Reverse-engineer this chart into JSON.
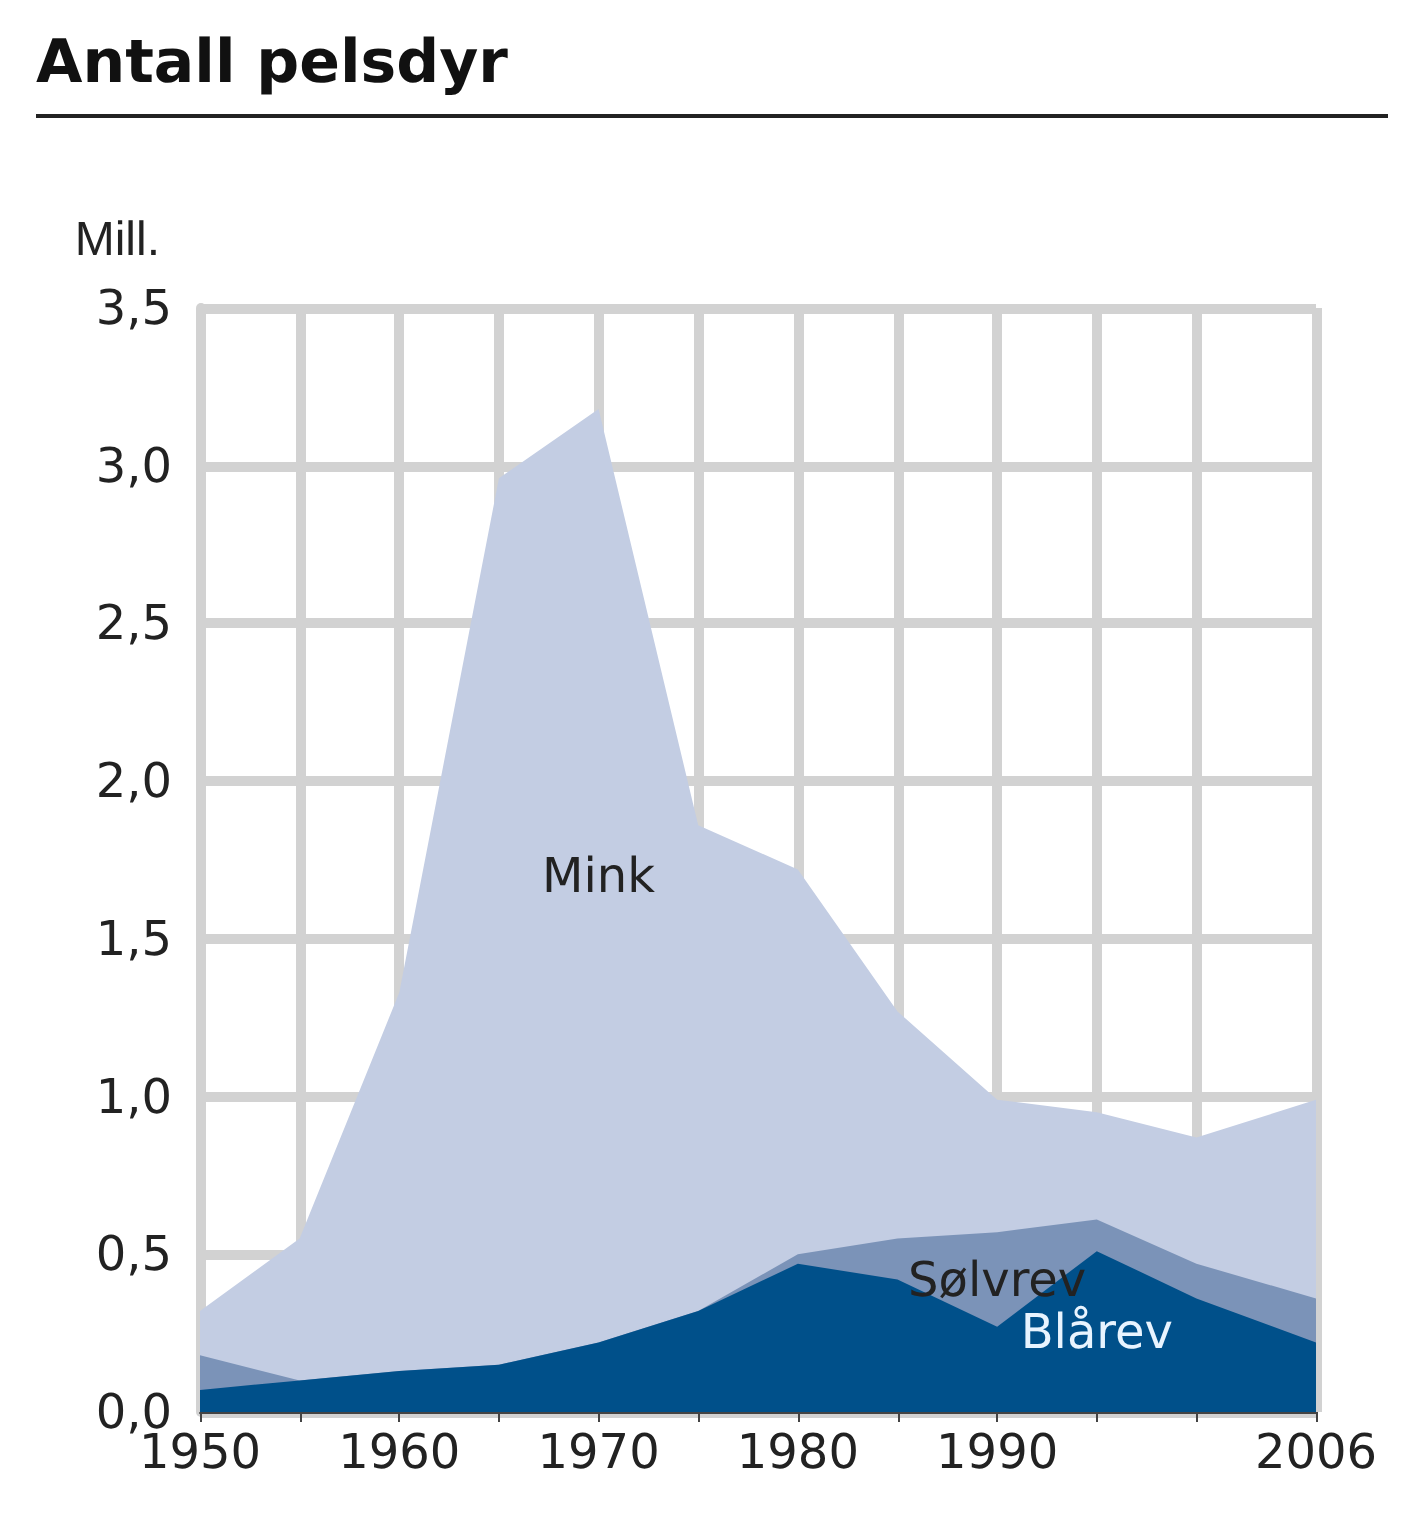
{
  "chart_data": {
    "type": "area",
    "title": "Antall pelsdyr",
    "ylabel": "Mill.",
    "stacked": true,
    "x": [
      1950,
      1955,
      1960,
      1965,
      1970,
      1975,
      1980,
      1985,
      1990,
      1995,
      2000,
      2006
    ],
    "series": [
      {
        "name": "Blårev",
        "color": "#00508a",
        "values": [
          0.07,
          0.1,
          0.13,
          0.15,
          0.22,
          0.32,
          0.47,
          0.42,
          0.27,
          0.51,
          0.36,
          0.22
        ]
      },
      {
        "name": "Sølvrev",
        "color": "#7b93b8",
        "values": [
          0.11,
          0,
          0,
          0,
          0,
          0,
          0.03,
          0.13,
          0.3,
          0.1,
          0.11,
          0.14
        ]
      },
      {
        "name": "Mink",
        "color": "#c3cde3",
        "values": [
          0.14,
          0.45,
          1.2,
          2.81,
          2.96,
          1.54,
          1.22,
          0.72,
          0.42,
          0.34,
          0.4,
          0.63
        ]
      }
    ],
    "xlim": [
      1950,
      2006
    ],
    "xticks": [
      1950,
      {
        "value": 1955,
        "label": null
      },
      1960,
      {
        "value": 1965,
        "label": null
      },
      1970,
      {
        "value": 1975,
        "label": null
      },
      1980,
      {
        "value": 1985,
        "label": null
      },
      1990,
      {
        "value": 1995,
        "label": null
      },
      {
        "value": 2000,
        "label": null
      },
      2006
    ],
    "ylim": [
      0,
      3.5
    ],
    "yticks": [
      {
        "value": 0,
        "label": "0,0"
      },
      {
        "value": 0.5,
        "label": "0,5"
      },
      {
        "value": 1,
        "label": "1,0"
      },
      {
        "value": 1.5,
        "label": "1,5"
      },
      {
        "value": 2,
        "label": "2,0"
      },
      {
        "value": 2.5,
        "label": "2,5"
      },
      {
        "value": 3,
        "label": "3,0"
      },
      {
        "value": 3.5,
        "label": "3,5"
      }
    ],
    "grid": true,
    "legend": false
  }
}
